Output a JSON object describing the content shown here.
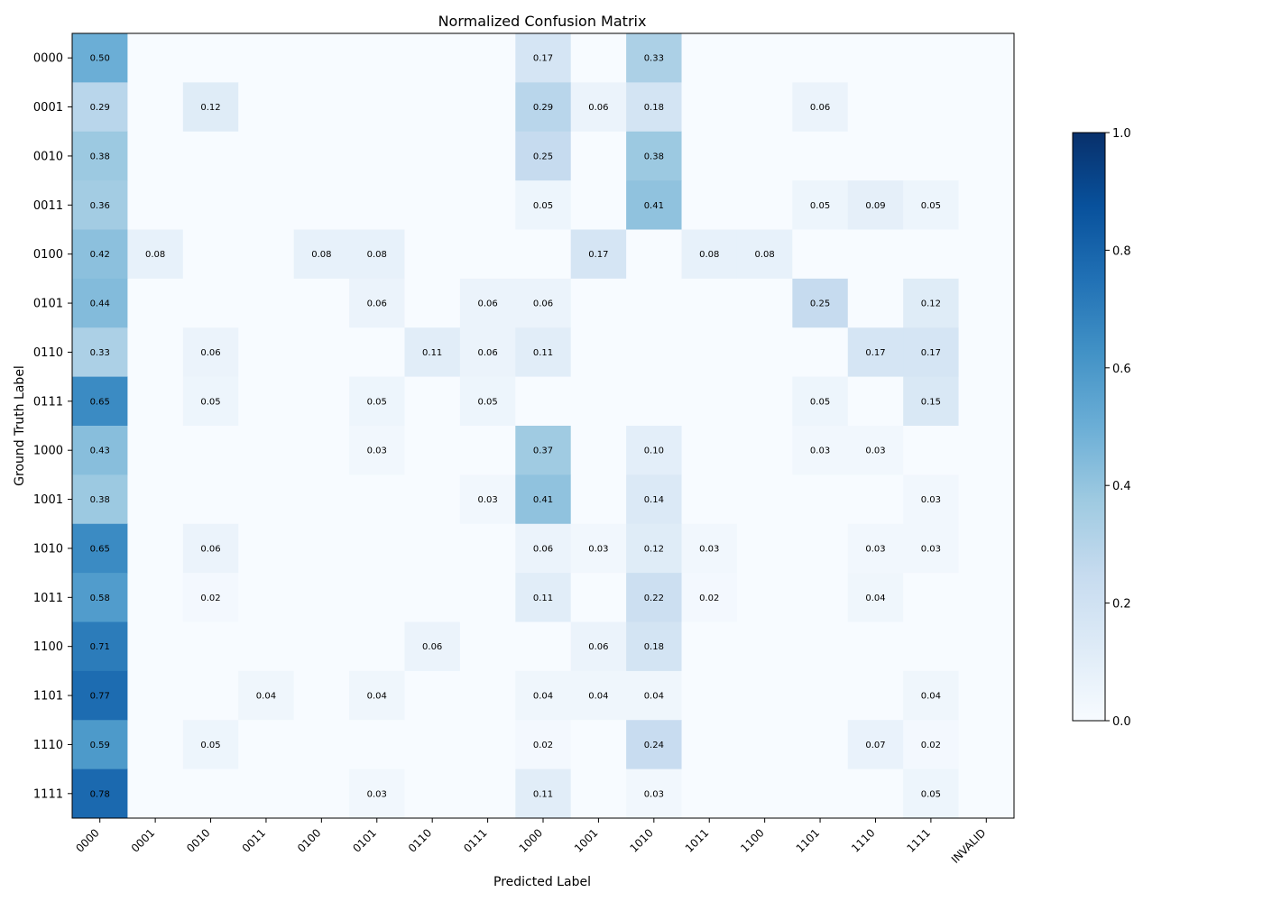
{
  "chart_data": {
    "type": "heatmap",
    "title": "Normalized Confusion Matrix",
    "xlabel": "Predicted Label",
    "ylabel": "Ground Truth Label",
    "x_categories": [
      "0000",
      "0001",
      "0010",
      "0011",
      "0100",
      "0101",
      "0110",
      "0111",
      "1000",
      "1001",
      "1010",
      "1011",
      "1100",
      "1101",
      "1110",
      "1111",
      "INVALID"
    ],
    "y_categories": [
      "0000",
      "0001",
      "0010",
      "0011",
      "0100",
      "0101",
      "0110",
      "0111",
      "1000",
      "1001",
      "1010",
      "1011",
      "1100",
      "1101",
      "1110",
      "1111"
    ],
    "values": [
      [
        0.5,
        0,
        0,
        0,
        0,
        0,
        0,
        0,
        0.17,
        0,
        0.33,
        0,
        0,
        0,
        0,
        0,
        0
      ],
      [
        0.29,
        0,
        0.12,
        0,
        0,
        0,
        0,
        0,
        0.29,
        0.06,
        0.18,
        0,
        0,
        0.06,
        0,
        0,
        0
      ],
      [
        0.38,
        0,
        0,
        0,
        0,
        0,
        0,
        0,
        0.25,
        0,
        0.38,
        0,
        0,
        0,
        0,
        0,
        0
      ],
      [
        0.36,
        0,
        0,
        0,
        0,
        0,
        0,
        0,
        0.05,
        0,
        0.41,
        0,
        0,
        0.05,
        0.09,
        0.05,
        0
      ],
      [
        0.42,
        0.08,
        0,
        0,
        0.08,
        0.08,
        0,
        0,
        0,
        0.17,
        0,
        0.08,
        0.08,
        0,
        0,
        0,
        0
      ],
      [
        0.44,
        0,
        0,
        0,
        0,
        0.06,
        0,
        0.06,
        0.06,
        0,
        0,
        0,
        0,
        0.25,
        0,
        0.12,
        0
      ],
      [
        0.33,
        0,
        0.06,
        0,
        0,
        0,
        0.11,
        0.06,
        0.11,
        0,
        0,
        0,
        0,
        0,
        0.17,
        0.17,
        0
      ],
      [
        0.65,
        0,
        0.05,
        0,
        0,
        0.05,
        0,
        0.05,
        0,
        0,
        0,
        0,
        0,
        0.05,
        0,
        0.15,
        0
      ],
      [
        0.43,
        0,
        0,
        0,
        0,
        0.03,
        0,
        0,
        0.37,
        0,
        0.1,
        0,
        0,
        0.03,
        0.03,
        0,
        0
      ],
      [
        0.38,
        0,
        0,
        0,
        0,
        0,
        0,
        0.03,
        0.41,
        0,
        0.14,
        0,
        0,
        0,
        0,
        0.03,
        0
      ],
      [
        0.65,
        0,
        0.06,
        0,
        0,
        0,
        0,
        0,
        0.06,
        0.03,
        0.12,
        0.03,
        0,
        0,
        0.03,
        0.03,
        0
      ],
      [
        0.58,
        0,
        0.02,
        0,
        0,
        0,
        0,
        0,
        0.11,
        0,
        0.22,
        0.02,
        0,
        0,
        0.04,
        0,
        0
      ],
      [
        0.71,
        0,
        0,
        0,
        0,
        0,
        0.06,
        0,
        0,
        0.06,
        0.18,
        0,
        0,
        0,
        0,
        0,
        0
      ],
      [
        0.77,
        0,
        0,
        0.04,
        0,
        0.04,
        0,
        0,
        0.04,
        0.04,
        0.04,
        0,
        0,
        0,
        0,
        0.04,
        0
      ],
      [
        0.59,
        0,
        0.05,
        0,
        0,
        0,
        0,
        0,
        0.02,
        0,
        0.24,
        0,
        0,
        0,
        0.07,
        0.02,
        0
      ],
      [
        0.78,
        0,
        0,
        0,
        0,
        0.03,
        0,
        0,
        0.11,
        0,
        0.03,
        0,
        0,
        0,
        0,
        0.05,
        0
      ]
    ],
    "colorbar": {
      "range": [
        0,
        1
      ],
      "ticks": [
        "0.0",
        "0.2",
        "0.4",
        "0.6",
        "0.8",
        "1.0"
      ],
      "colormap": "Blues"
    }
  }
}
